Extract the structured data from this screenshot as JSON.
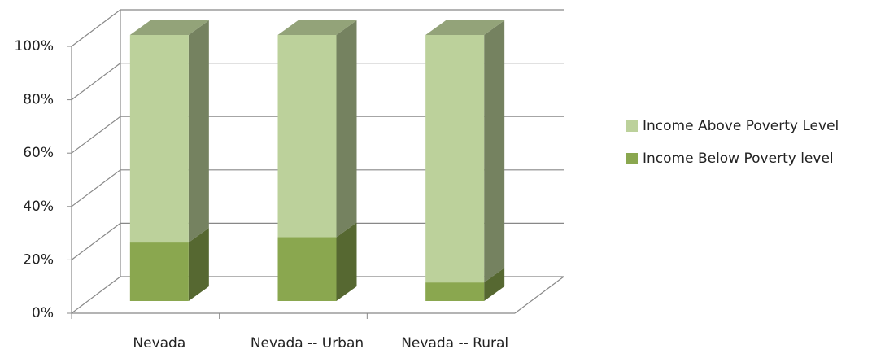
{
  "chart_data": {
    "type": "stacked_bar_3d",
    "categories": [
      "Nevada",
      "Nevada -- Urban",
      "Nevada -- Rural"
    ],
    "series": [
      {
        "name": "Income Below Poverty level",
        "color": "#8aa74f",
        "values": [
          22,
          24,
          7
        ]
      },
      {
        "name": "Income Above Poverty Level",
        "color": "#bcd19b",
        "values": [
          78,
          76,
          93
        ]
      }
    ],
    "ylim": [
      0,
      100
    ],
    "yticks": [
      {
        "value": 0,
        "label": "0%"
      },
      {
        "value": 20,
        "label": "20%"
      },
      {
        "value": 40,
        "label": "40%"
      },
      {
        "value": 60,
        "label": "60%"
      },
      {
        "value": 80,
        "label": "80%"
      },
      {
        "value": 100,
        "label": "100%"
      }
    ],
    "grid": true,
    "legend": "right"
  }
}
